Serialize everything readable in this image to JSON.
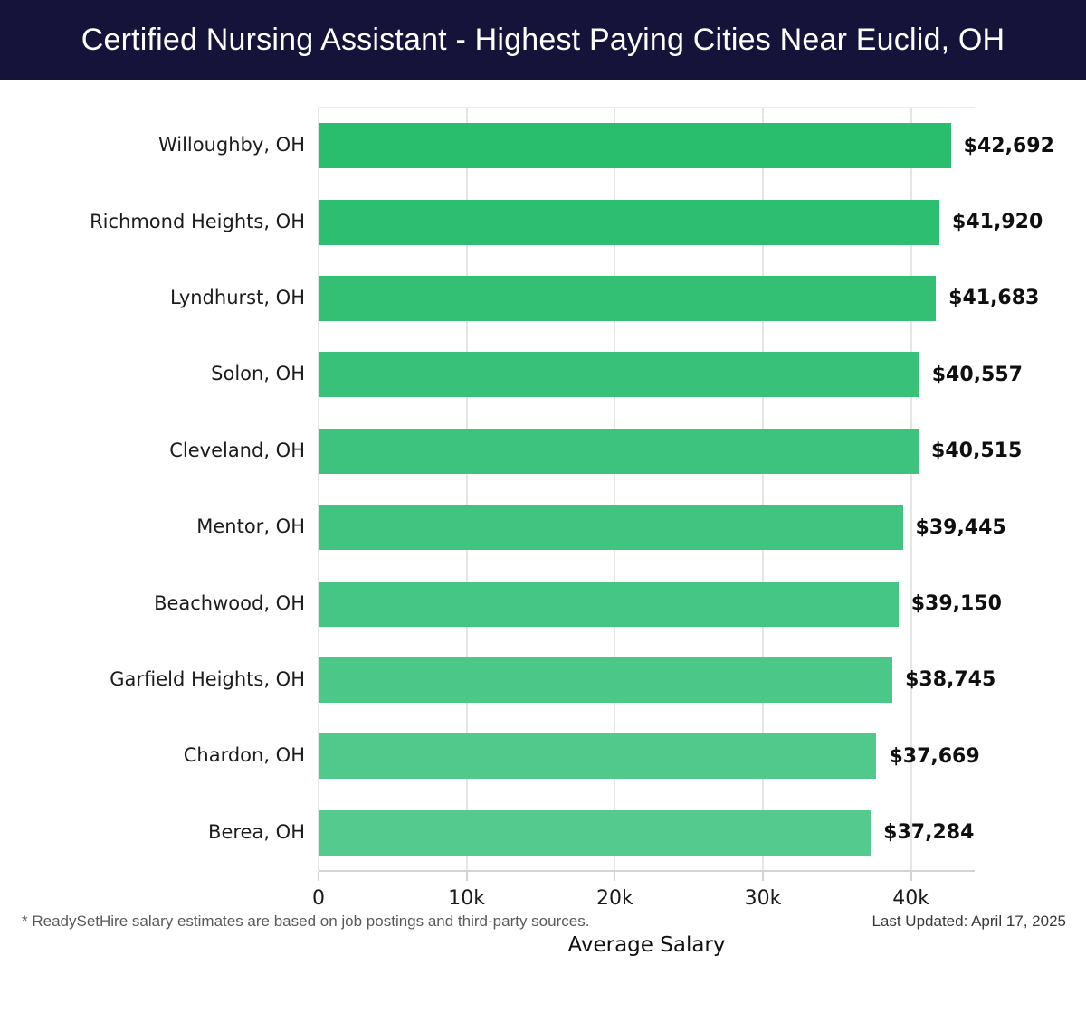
{
  "header": {
    "title": "Certified Nursing Assistant - Highest Paying Cities Near Euclid, OH",
    "bg_color": "#15133a",
    "text_color": "#ffffff"
  },
  "chart_data": {
    "type": "bar",
    "orientation": "horizontal",
    "categories": [
      "Willoughby, OH",
      "Richmond Heights, OH",
      "Lyndhurst, OH",
      "Solon, OH",
      "Cleveland, OH",
      "Mentor, OH",
      "Beachwood, OH",
      "Garfield Heights, OH",
      "Chardon, OH",
      "Berea, OH"
    ],
    "values": [
      42692,
      41920,
      41683,
      40557,
      40515,
      39445,
      39150,
      38745,
      37669,
      37284
    ],
    "value_labels": [
      "$42,692",
      "$41,920",
      "$41,683",
      "$40,557",
      "$40,515",
      "$39,445",
      "$39,150",
      "$38,745",
      "$37,669",
      "$37,284"
    ],
    "bar_colors": [
      "#29bd6e",
      "#2ebe72",
      "#33c075",
      "#38c179",
      "#3dc37d",
      "#41c480",
      "#46c684",
      "#4bc788",
      "#50c98b",
      "#55ca8f"
    ],
    "xlabel": "Average Salary",
    "ylabel": "",
    "xlim": [
      0,
      44300
    ],
    "xticks": [
      {
        "value": 0,
        "label": "0"
      },
      {
        "value": 10000,
        "label": "10k"
      },
      {
        "value": 20000,
        "label": "20k"
      },
      {
        "value": 30000,
        "label": "30k"
      },
      {
        "value": 40000,
        "label": "40k"
      }
    ],
    "grid": "vertical",
    "gridline_color": "#e5e5e5",
    "axis_line_color": "#d4d4d4",
    "legend": "none"
  },
  "footer": {
    "note": "* ReadySetHire salary estimates are based on job postings and third-party sources.",
    "last_updated": "Last Updated: April 17, 2025"
  }
}
